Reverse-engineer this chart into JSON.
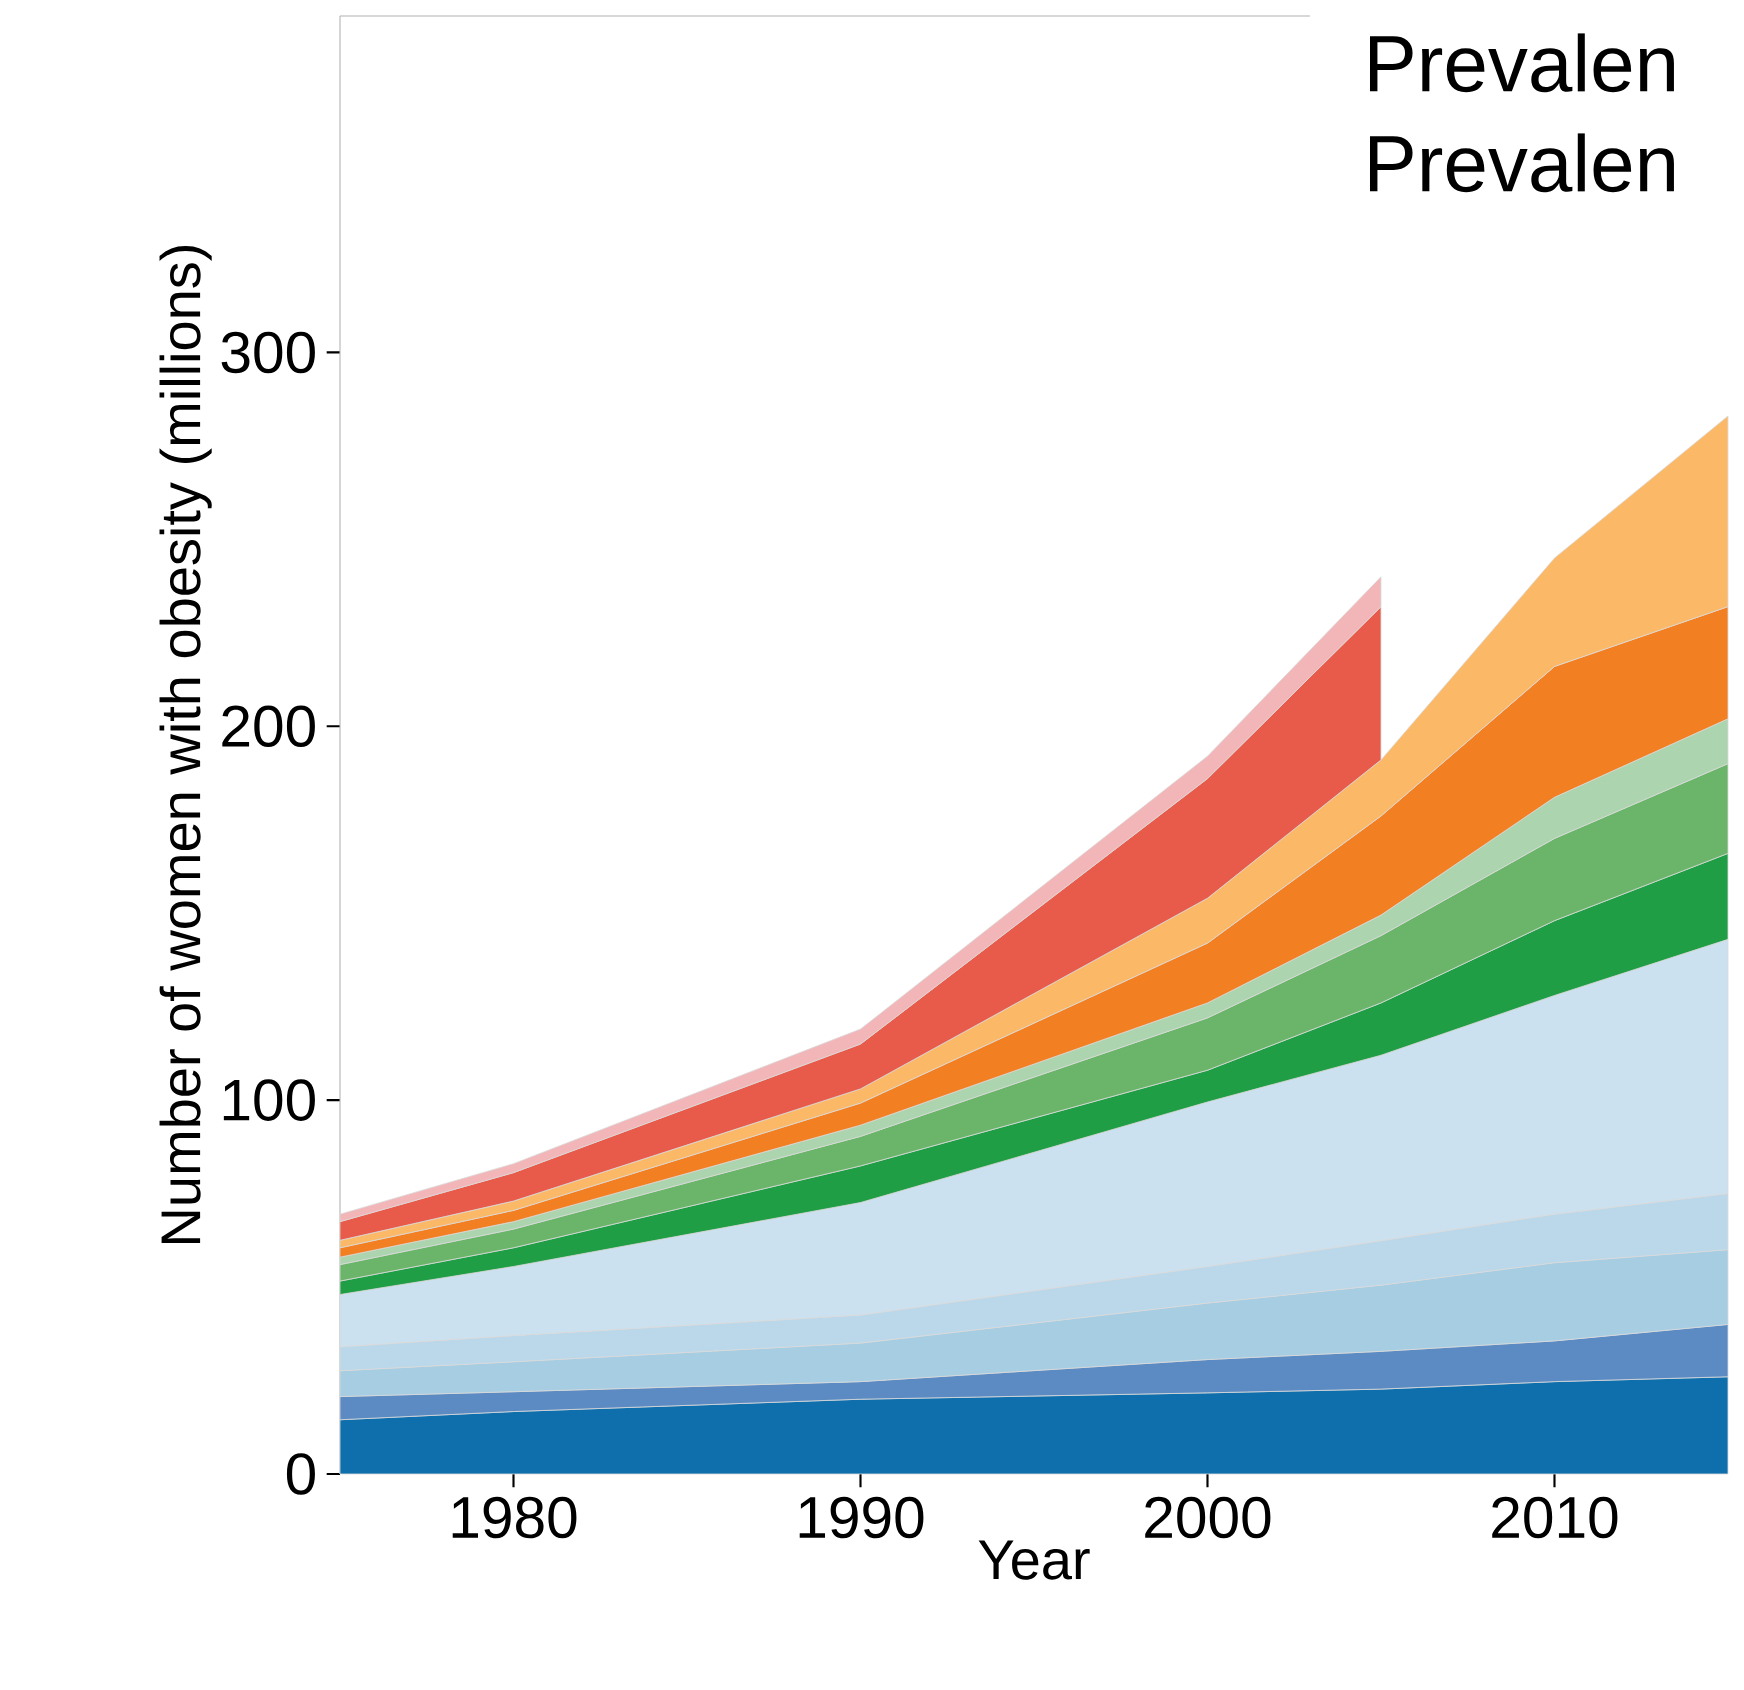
{
  "chart_data": {
    "type": "area",
    "stacked": true,
    "xlabel": "Year",
    "ylabel": "Number of women with obesity (millions)",
    "annotations": [
      "Prevalen",
      "Prevalen"
    ],
    "x": [
      1975,
      1980,
      1990,
      2000,
      2005,
      2010,
      2015
    ],
    "xlim": [
      1975,
      2015
    ],
    "ylim": [
      0,
      390
    ],
    "xticks": [
      1980,
      1990,
      2000,
      2010
    ],
    "yticks": [
      0,
      100,
      200,
      300
    ],
    "series": [
      {
        "color": "#0f6fac",
        "values": [
          14.5,
          16.7,
          20,
          21.7,
          22.7,
          24.7,
          26
        ]
      },
      {
        "color": "#5b8bc2",
        "values": [
          6.2,
          5.3,
          4.7,
          8.9,
          10.1,
          10.9,
          14
        ]
      },
      {
        "color": "#a6cde2",
        "values": [
          6.9,
          8,
          10.3,
          15.1,
          17.7,
          20.9,
          20
        ]
      },
      {
        "color": "#bbd8ea",
        "values": [
          6.4,
          7,
          7.5,
          9.8,
          11.9,
          13,
          15
        ]
      },
      {
        "color": "#cbe1ef",
        "values": [
          14,
          18.5,
          30.1,
          44,
          49.6,
          58.5,
          68
        ]
      },
      {
        "color": "#1f9e46",
        "values": [
          3.6,
          5,
          9.8,
          8.5,
          14,
          20,
          23
        ]
      },
      {
        "color": "#6bb56a",
        "values": [
          4.4,
          5,
          7.9,
          14,
          18,
          22,
          24
        ]
      },
      {
        "color": "#acd4ae",
        "values": [
          2,
          2,
          3,
          4,
          5.5,
          11,
          12
        ]
      },
      {
        "color": "#f27f22",
        "values": [
          2.5,
          3,
          5.9,
          16,
          26.5,
          35,
          30
        ]
      },
      {
        "color": "#fbb968",
        "values": [
          2,
          2.5,
          3.8,
          12,
          15,
          29,
          51
        ]
      },
      {
        "color": "#e85b4b",
        "values": [
          5,
          7.6,
          12,
          32,
          41,
          null,
          null
        ]
      },
      {
        "color": "#f2b6b8",
        "values": [
          2,
          2.4,
          4,
          6,
          8,
          null,
          null
        ]
      }
    ]
  }
}
